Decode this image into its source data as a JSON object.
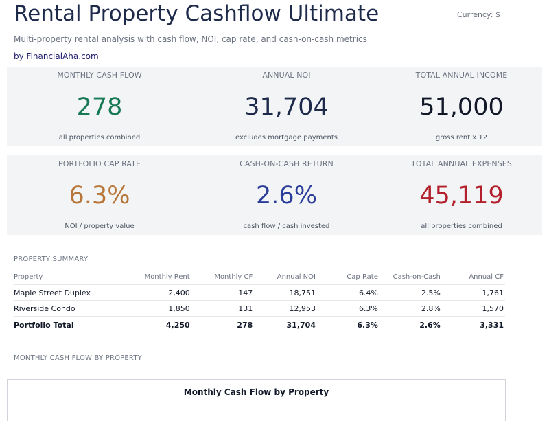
{
  "header": {
    "title": "Rental Property Cashflow Ultimate",
    "currency": "Currency: $",
    "subtitle": "Multi-property rental analysis with cash flow, NOI, cap rate, and cash-on-cash metrics",
    "byline": "by FinancialAha.com"
  },
  "kpis_row1": [
    {
      "label": "MONTHLY CASH FLOW",
      "value": "278",
      "note": "all properties combined",
      "color": "#177a55"
    },
    {
      "label": "ANNUAL NOI",
      "value": "31,704",
      "note": "excludes mortgage payments",
      "color": "#1e2a4a"
    },
    {
      "label": "TOTAL ANNUAL INCOME",
      "value": "51,000",
      "note": "gross rent x 12",
      "color": "#111827"
    }
  ],
  "kpis_row2": [
    {
      "label": "PORTFOLIO CAP RATE",
      "value": "6.3%",
      "note": "NOI / property value",
      "color": "#b8773a"
    },
    {
      "label": "CASH-ON-CASH RETURN",
      "value": "2.6%",
      "note": "cash flow / cash invested",
      "color": "#2b3e9a"
    },
    {
      "label": "TOTAL ANNUAL EXPENSES",
      "value": "45,119",
      "note": "all properties combined",
      "color": "#b3202b"
    }
  ],
  "summary": {
    "section_label": "PROPERTY SUMMARY",
    "columns": [
      "Property",
      "Monthly Rent",
      "Monthly CF",
      "Annual NOI",
      "Cap Rate",
      "Cash-on-Cash",
      "Annual CF"
    ],
    "rows": [
      [
        "Maple Street Duplex",
        "2,400",
        "147",
        "18,751",
        "6.4%",
        "2.5%",
        "1,761"
      ],
      [
        "Riverside Condo",
        "1,850",
        "131",
        "12,953",
        "6.3%",
        "2.8%",
        "1,570"
      ]
    ],
    "total": [
      "Portfolio Total",
      "4,250",
      "278",
      "31,704",
      "6.3%",
      "2.6%",
      "3,331"
    ]
  },
  "chart_section": {
    "section_label": "MONTHLY CASH FLOW BY PROPERTY",
    "chart_title": "Monthly Cash Flow by Property"
  }
}
